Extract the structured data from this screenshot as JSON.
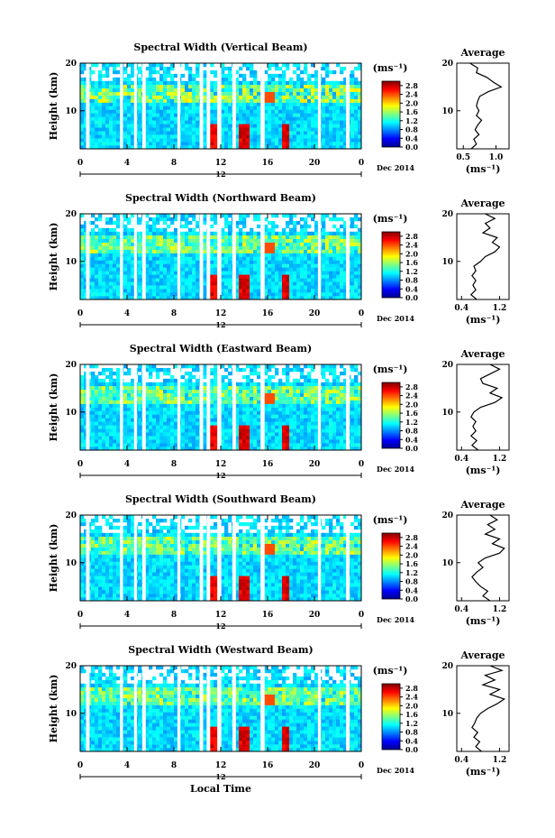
{
  "date_label": "Dec 2014",
  "day_label": "12",
  "x_axis_label": "Local Time",
  "unit_label": "(ms⁻¹)",
  "colorbar_ticks": [
    "2.8",
    "2.4",
    "2.0",
    "1.6",
    "1.2",
    "0.8",
    "0.4",
    "0.0"
  ],
  "chart_data": [
    {
      "type": "heatmap",
      "title": "Spectral Width (Vertical Beam)",
      "ylabel": "Height (km)",
      "xlabel": "Local Time",
      "x_ticks": [
        "0",
        "4",
        "8",
        "12",
        "16",
        "20",
        "0"
      ],
      "y_ticks": [
        "10",
        "20"
      ],
      "xlim": [
        0,
        24
      ],
      "ylim": [
        2,
        20
      ],
      "colorbar": {
        "min": 0.0,
        "max": 3.0,
        "ticks": [
          0.0,
          0.4,
          0.8,
          1.2,
          1.6,
          2.0,
          2.4,
          2.8
        ]
      },
      "average_profile": {
        "title": "Average",
        "x_ticks": [
          "0.5",
          "1.0"
        ],
        "xlim": [
          0.4,
          1.2
        ],
        "points": [
          [
            0.62,
            2
          ],
          [
            0.7,
            3
          ],
          [
            0.66,
            4
          ],
          [
            0.74,
            5
          ],
          [
            0.68,
            6
          ],
          [
            0.72,
            7
          ],
          [
            0.78,
            8
          ],
          [
            0.7,
            9
          ],
          [
            0.74,
            10
          ],
          [
            0.7,
            11
          ],
          [
            0.72,
            12
          ],
          [
            0.75,
            13
          ],
          [
            0.88,
            14
          ],
          [
            1.08,
            15
          ],
          [
            0.96,
            16
          ],
          [
            0.86,
            17
          ],
          [
            0.7,
            18
          ],
          [
            0.72,
            19
          ],
          [
            0.6,
            20
          ]
        ]
      }
    },
    {
      "type": "heatmap",
      "title": "Spectral Width (Northward Beam)",
      "ylabel": "Height (km)",
      "xlabel": "Local Time",
      "x_ticks": [
        "0",
        "4",
        "8",
        "12",
        "16",
        "20",
        "0"
      ],
      "y_ticks": [
        "10",
        "20"
      ],
      "xlim": [
        0,
        24
      ],
      "ylim": [
        2,
        20
      ],
      "colorbar": {
        "min": 0.0,
        "max": 3.0,
        "ticks": [
          0.0,
          0.4,
          0.8,
          1.2,
          1.6,
          2.0,
          2.4,
          2.8
        ]
      },
      "average_profile": {
        "title": "Average",
        "x_ticks": [
          "0.4",
          "1.2"
        ],
        "xlim": [
          0.3,
          1.4
        ],
        "points": [
          [
            0.72,
            2
          ],
          [
            0.6,
            3
          ],
          [
            0.7,
            4
          ],
          [
            0.64,
            5
          ],
          [
            0.7,
            6
          ],
          [
            0.62,
            7
          ],
          [
            0.7,
            8
          ],
          [
            0.66,
            9
          ],
          [
            0.8,
            10
          ],
          [
            0.9,
            11
          ],
          [
            1.1,
            12
          ],
          [
            1.2,
            13
          ],
          [
            1.05,
            14
          ],
          [
            1.15,
            15
          ],
          [
            0.85,
            16
          ],
          [
            1.0,
            17
          ],
          [
            0.9,
            18
          ],
          [
            1.1,
            19
          ],
          [
            0.9,
            20
          ]
        ]
      }
    },
    {
      "type": "heatmap",
      "title": "Spectral Width (Eastward Beam)",
      "ylabel": "Height (km)",
      "xlabel": "Local Time",
      "x_ticks": [
        "0",
        "4",
        "8",
        "12",
        "16",
        "20",
        "0"
      ],
      "y_ticks": [
        "10",
        "20"
      ],
      "xlim": [
        0,
        24
      ],
      "ylim": [
        2,
        20
      ],
      "colorbar": {
        "min": 0.0,
        "max": 3.0,
        "ticks": [
          0.0,
          0.4,
          0.8,
          1.2,
          1.6,
          2.0,
          2.4,
          2.8
        ]
      },
      "average_profile": {
        "title": "Average",
        "x_ticks": [
          "0.4",
          "1.2"
        ],
        "xlim": [
          0.3,
          1.4
        ],
        "points": [
          [
            0.75,
            2
          ],
          [
            0.62,
            3
          ],
          [
            0.72,
            4
          ],
          [
            0.6,
            5
          ],
          [
            0.7,
            6
          ],
          [
            0.64,
            7
          ],
          [
            0.7,
            8
          ],
          [
            0.6,
            9
          ],
          [
            0.66,
            10
          ],
          [
            0.8,
            11
          ],
          [
            1.1,
            12
          ],
          [
            1.25,
            13
          ],
          [
            1.0,
            14
          ],
          [
            1.15,
            15
          ],
          [
            0.85,
            16
          ],
          [
            0.8,
            17
          ],
          [
            1.0,
            18
          ],
          [
            1.2,
            19
          ],
          [
            1.0,
            20
          ]
        ]
      }
    },
    {
      "type": "heatmap",
      "title": "Spectral Width (Southward Beam)",
      "ylabel": "Height (km)",
      "xlabel": "Local Time",
      "x_ticks": [
        "0",
        "4",
        "8",
        "12",
        "16",
        "20",
        "0"
      ],
      "y_ticks": [
        "10",
        "20"
      ],
      "xlim": [
        0,
        24
      ],
      "ylim": [
        2,
        20
      ],
      "colorbar": {
        "min": 0.0,
        "max": 3.0,
        "ticks": [
          0.0,
          0.4,
          0.8,
          1.2,
          1.6,
          2.0,
          2.4,
          2.8
        ]
      },
      "average_profile": {
        "title": "Average",
        "x_ticks": [
          "0.4",
          "1.2"
        ],
        "xlim": [
          0.3,
          1.4
        ],
        "points": [
          [
            1.0,
            2
          ],
          [
            0.85,
            3
          ],
          [
            0.95,
            4
          ],
          [
            0.8,
            5
          ],
          [
            0.7,
            6
          ],
          [
            0.62,
            7
          ],
          [
            0.72,
            8
          ],
          [
            0.85,
            9
          ],
          [
            0.75,
            10
          ],
          [
            0.9,
            11
          ],
          [
            1.2,
            12
          ],
          [
            1.3,
            13
          ],
          [
            1.05,
            14
          ],
          [
            1.2,
            15
          ],
          [
            0.9,
            16
          ],
          [
            1.1,
            17
          ],
          [
            0.95,
            18
          ],
          [
            1.15,
            19
          ],
          [
            1.0,
            20
          ]
        ]
      }
    },
    {
      "type": "heatmap",
      "title": "Spectral Width (Westward Beam)",
      "ylabel": "Height (km)",
      "xlabel": "Local Time",
      "x_ticks": [
        "0",
        "4",
        "8",
        "12",
        "16",
        "20",
        "0"
      ],
      "y_ticks": [
        "10",
        "20"
      ],
      "xlim": [
        0,
        24
      ],
      "ylim": [
        2,
        20
      ],
      "colorbar": {
        "min": 0.0,
        "max": 3.0,
        "ticks": [
          0.0,
          0.4,
          0.8,
          1.2,
          1.6,
          2.0,
          2.4,
          2.8
        ]
      },
      "average_profile": {
        "title": "Average",
        "x_ticks": [
          "0.4",
          "1.2"
        ],
        "xlim": [
          0.3,
          1.4
        ],
        "points": [
          [
            0.82,
            2
          ],
          [
            0.7,
            3
          ],
          [
            0.78,
            4
          ],
          [
            0.66,
            5
          ],
          [
            0.74,
            6
          ],
          [
            0.62,
            7
          ],
          [
            0.68,
            8
          ],
          [
            0.72,
            9
          ],
          [
            0.8,
            10
          ],
          [
            0.95,
            11
          ],
          [
            1.15,
            12
          ],
          [
            1.3,
            13
          ],
          [
            1.0,
            14
          ],
          [
            1.2,
            15
          ],
          [
            0.85,
            16
          ],
          [
            1.1,
            17
          ],
          [
            0.9,
            18
          ],
          [
            1.25,
            19
          ],
          [
            1.0,
            20
          ]
        ]
      }
    }
  ]
}
